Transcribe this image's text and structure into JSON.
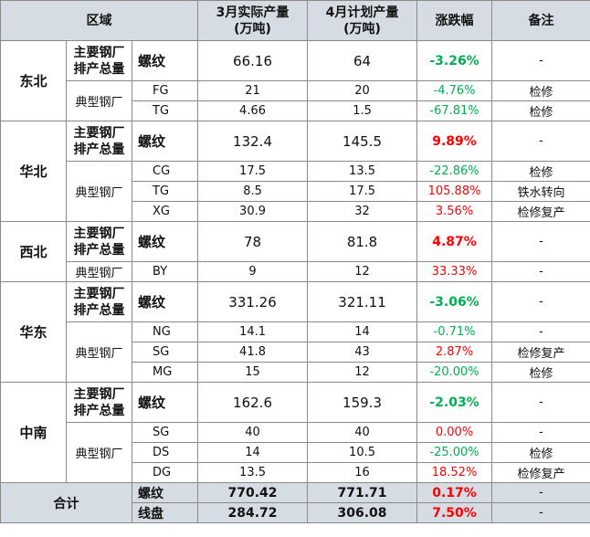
{
  "header": {
    "region": "区域",
    "march_actual": "3月实际产量\n(万吨)",
    "april_plan": "4月计划产量\n(万吨)",
    "change": "涨跌幅",
    "note": "备注"
  },
  "labels": {
    "main_mills": "主要钢厂\n排产总量",
    "typical_mills": "典型钢厂"
  },
  "colors": {
    "up": "#ff0000",
    "down": "#00b050",
    "neutral": "#111111",
    "header_bg": "#d6dce4"
  },
  "regions": [
    {
      "name": "东北",
      "main": {
        "product": "螺纹",
        "march": "66.16",
        "april": "64",
        "change": "-3.26%",
        "dir": "down",
        "note": "-"
      },
      "typical": [
        {
          "name": "FG",
          "march": "21",
          "april": "20",
          "change": "-4.76%",
          "dir": "down",
          "note": "检修"
        },
        {
          "name": "TG",
          "march": "4.66",
          "april": "1.5",
          "change": "-67.81%",
          "dir": "down",
          "note": "检修"
        }
      ]
    },
    {
      "name": "华北",
      "main": {
        "product": "螺纹",
        "march": "132.4",
        "april": "145.5",
        "change": "9.89%",
        "dir": "up",
        "note": "-"
      },
      "typical": [
        {
          "name": "CG",
          "march": "17.5",
          "april": "13.5",
          "change": "-22.86%",
          "dir": "down",
          "note": "检修"
        },
        {
          "name": "TG",
          "march": "8.5",
          "april": "17.5",
          "change": "105.88%",
          "dir": "up",
          "note": "铁水转向"
        },
        {
          "name": "XG",
          "march": "30.9",
          "april": "32",
          "change": "3.56%",
          "dir": "up",
          "note": "检修复产"
        }
      ]
    },
    {
      "name": "西北",
      "main": {
        "product": "螺纹",
        "march": "78",
        "april": "81.8",
        "change": "4.87%",
        "dir": "up",
        "note": "-"
      },
      "typical": [
        {
          "name": "BY",
          "march": "9",
          "april": "12",
          "change": "33.33%",
          "dir": "up",
          "note": "-"
        }
      ]
    },
    {
      "name": "华东",
      "main": {
        "product": "螺纹",
        "march": "331.26",
        "april": "321.11",
        "change": "-3.06%",
        "dir": "down",
        "note": "-"
      },
      "typical": [
        {
          "name": "NG",
          "march": "14.1",
          "april": "14",
          "change": "-0.71%",
          "dir": "down",
          "note": "-"
        },
        {
          "name": "SG",
          "march": "41.8",
          "april": "43",
          "change": "2.87%",
          "dir": "up",
          "note": "检修复产"
        },
        {
          "name": "MG",
          "march": "15",
          "april": "12",
          "change": "-20.00%",
          "dir": "down",
          "note": "检修"
        }
      ]
    },
    {
      "name": "中南",
      "main": {
        "product": "螺纹",
        "march": "162.6",
        "april": "159.3",
        "change": "-2.03%",
        "dir": "down",
        "note": "-"
      },
      "typical": [
        {
          "name": "SG",
          "march": "40",
          "april": "40",
          "change": "0.00%",
          "dir": "up",
          "note": "-"
        },
        {
          "name": "DS",
          "march": "14",
          "april": "10.5",
          "change": "-25.00%",
          "dir": "down",
          "note": "检修"
        },
        {
          "name": "DG",
          "march": "13.5",
          "april": "16",
          "change": "18.52%",
          "dir": "up",
          "note": "检修复产"
        }
      ]
    }
  ],
  "total": {
    "label": "合计",
    "rows": [
      {
        "product": "螺纹",
        "march": "770.42",
        "april": "771.71",
        "change": "0.17%",
        "dir": "up",
        "note": "-"
      },
      {
        "product": "线盘",
        "march": "284.72",
        "april": "306.08",
        "change": "7.50%",
        "dir": "up",
        "note": "-"
      }
    ]
  }
}
